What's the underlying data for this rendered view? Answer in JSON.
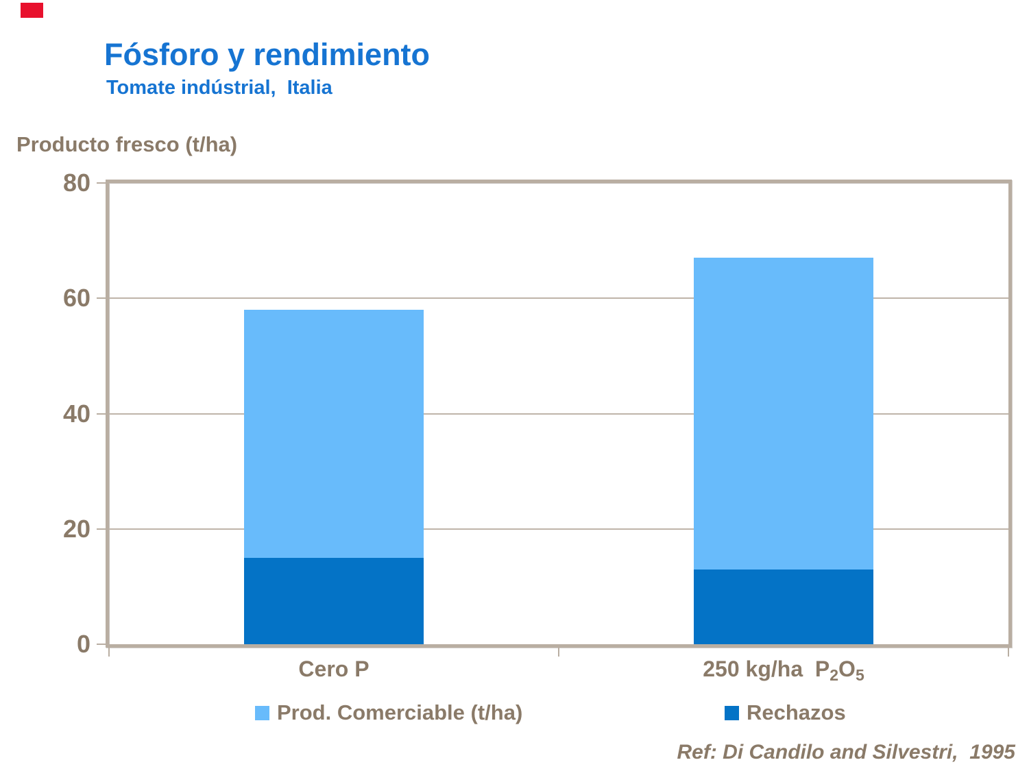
{
  "slide": {
    "title": "Fósforo y rendimiento",
    "subtitle": "Tomate indústrial,  Italia",
    "axis_title": "Producto fresco (t/ha)",
    "reference": "Ref: Di Candilo and Silvestri,  1995"
  },
  "colors": {
    "title_blue": "#1674D2",
    "text_brown": "#8A7A68",
    "frame_tan": "#B9AEA2",
    "grid_tan": "#BFB4A9",
    "light_blue": "#68BBFB",
    "dark_blue": "#0473C6",
    "marker_red": "#E8112D"
  },
  "chart_data": {
    "type": "bar",
    "stacked": true,
    "title": "Fósforo y rendimiento — Tomate indústrial, Italia",
    "ylabel": "Producto fresco (t/ha)",
    "ylim": [
      0,
      80
    ],
    "yticks": [
      0,
      20,
      40,
      60,
      80
    ],
    "grid": true,
    "legend_position": "bottom",
    "categories": [
      {
        "label": "Cero P",
        "parts": [
          {
            "t": "Cero P"
          }
        ]
      },
      {
        "label": "250 kg/ha P2O5",
        "parts": [
          {
            "t": "250 kg/ha  P"
          },
          {
            "t": "2",
            "sub": true
          },
          {
            "t": "O"
          },
          {
            "t": "5",
            "sub": true
          }
        ]
      }
    ],
    "series": [
      {
        "name": "Prod. Comerciable (t/ha)",
        "color": "#68BBFB",
        "values": [
          43,
          54
        ]
      },
      {
        "name": "Rechazos",
        "color": "#0473C6",
        "values": [
          15,
          13
        ]
      }
    ],
    "stack_bottom_to_top": [
      1,
      0
    ],
    "totals": [
      58,
      67
    ]
  },
  "legend": {
    "items": [
      {
        "label": "Prod. Comerciable (t/ha)",
        "color": "#68BBFB"
      },
      {
        "label": "Rechazos",
        "color": "#0473C6"
      }
    ]
  }
}
